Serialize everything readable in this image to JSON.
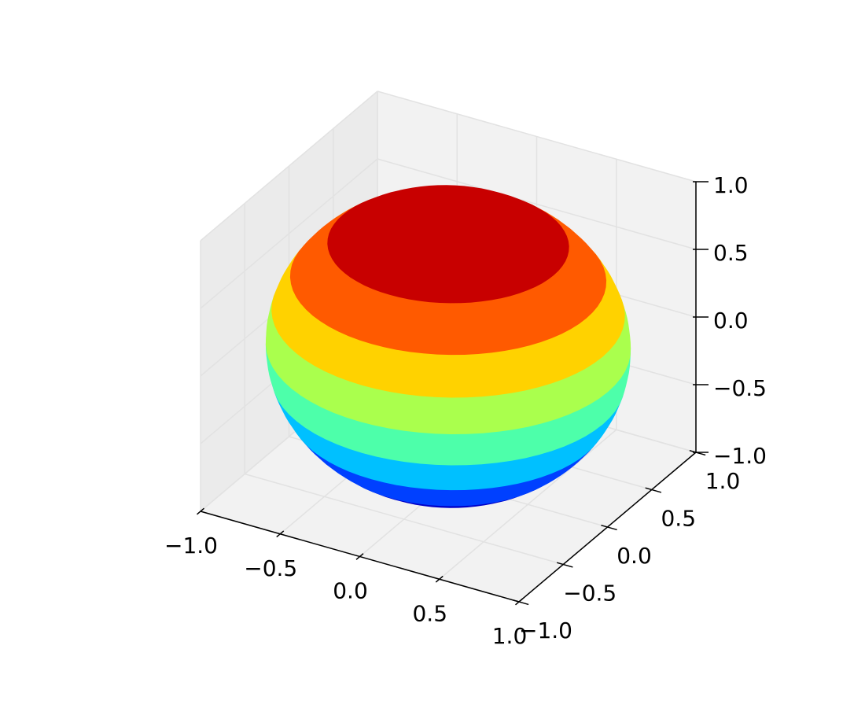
{
  "chart_data": {
    "type": "contour3d",
    "xlim": [
      -1,
      1
    ],
    "ylim": [
      -1,
      1
    ],
    "zlim": [
      -1,
      1
    ],
    "xticks": [
      {
        "value": -1,
        "label": "−1.0"
      },
      {
        "value": -0.5,
        "label": "−0.5"
      },
      {
        "value": 0,
        "label": "0.0"
      },
      {
        "value": 0.5,
        "label": "0.5"
      },
      {
        "value": 1,
        "label": "1.0"
      }
    ],
    "yticks": [
      {
        "value": -1,
        "label": "−1.0"
      },
      {
        "value": -0.5,
        "label": "−0.5"
      },
      {
        "value": 0,
        "label": "0.0"
      },
      {
        "value": 0.5,
        "label": "0.5"
      },
      {
        "value": 1,
        "label": "1.0"
      }
    ],
    "zticks": [
      {
        "value": -1,
        "label": "−1.0"
      },
      {
        "value": -0.5,
        "label": "−0.5"
      },
      {
        "value": 0,
        "label": "0.0"
      },
      {
        "value": 0.5,
        "label": "0.5"
      },
      {
        "value": 1,
        "label": "1.0"
      }
    ],
    "levels": [
      -1,
      -0.75,
      -0.5,
      -0.25,
      0,
      0.25,
      0.5,
      0.75,
      1
    ],
    "colors": [
      "#0000c8",
      "#0040ff",
      "#00c0ff",
      "#4dffaa",
      "#aaff4d",
      "#ffd200",
      "#ff5a00",
      "#c80000"
    ],
    "grid": true
  }
}
